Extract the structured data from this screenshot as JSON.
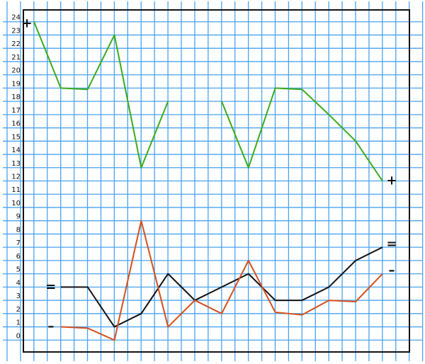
{
  "chart_data": {
    "type": "line",
    "categories": [
      null,
      null,
      null,
      null,
      null,
      null,
      null,
      null,
      null,
      null,
      null,
      null,
      null,
      null
    ],
    "series": [
      {
        "name": "+",
        "color": "#3aaa1e",
        "values": [
          24,
          19,
          18.9,
          23,
          13,
          18,
          null,
          18,
          13,
          19,
          18.9,
          17,
          15,
          12
        ]
      },
      {
        "name": "=",
        "color": "#111111",
        "values": [
          null,
          4,
          4,
          1,
          2,
          5,
          3,
          4,
          5,
          3,
          3,
          4,
          6,
          7
        ]
      },
      {
        "name": "–",
        "color": "#d4501e",
        "values": [
          null,
          1,
          0.9,
          0,
          9,
          1,
          3,
          2,
          6,
          2.1,
          1.9,
          3,
          2.9,
          5
        ]
      }
    ],
    "ylim": [
      -1,
      25
    ],
    "yticks": [
      0,
      1,
      2,
      3,
      4,
      5,
      6,
      7,
      8,
      9,
      10,
      11,
      12,
      13,
      14,
      15,
      16,
      17,
      18,
      19,
      20,
      21,
      22,
      23,
      24
    ],
    "grid": true
  }
}
